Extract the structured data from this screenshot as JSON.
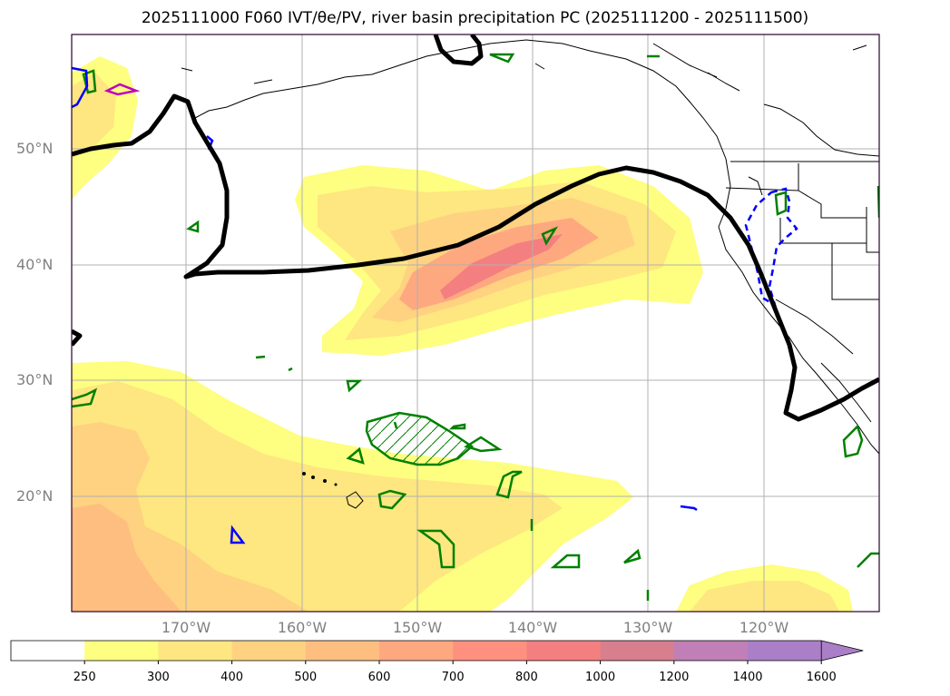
{
  "title": "2025111000 F060 IVT/θe/PV, river basin precipitation PC (2025111200 - 2025111500)",
  "lat_labels": [
    "50°N",
    "40°N",
    "30°N",
    "20°N"
  ],
  "lon_labels": [
    "170°W",
    "160°W",
    "150°W",
    "140°W",
    "130°W",
    "120°W"
  ],
  "colorbar": {
    "levels": [
      "250",
      "300",
      "400",
      "500",
      "600",
      "700",
      "800",
      "1000",
      "1200",
      "1400",
      "1600"
    ],
    "colors": [
      "#ffffff",
      "#fefe80",
      "#fee680",
      "#fed280",
      "#febe80",
      "#fea880",
      "#fe9080",
      "#f47f80",
      "#d87f8e",
      "#c07fb6",
      "#aa7fc8"
    ],
    "extend": "max"
  },
  "colors": {
    "ivt_low": "#fefe80",
    "ivt_mid": "#fed280",
    "ivt_high": "#f47f80",
    "pv_contour": "#000000",
    "green_contour": "#008000",
    "blue_contour": "#0000ff",
    "magenta_contour": "#c000c0"
  }
}
